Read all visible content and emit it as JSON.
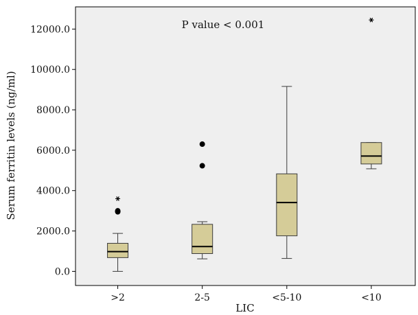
{
  "chart_data": {
    "type": "boxplot",
    "annotation": "P value < 0.001",
    "xlabel": "LIC",
    "ylabel": "Serum ferritin levels (ng/ml)",
    "ylim": [
      -700,
      13100
    ],
    "y_ticks": [
      0,
      2000,
      4000,
      6000,
      8000,
      10000,
      12000
    ],
    "y_tick_labels": [
      "0.0",
      "2000.0",
      "4000.0",
      "6000.0",
      "8000.0",
      "10000.0",
      "12000.0"
    ],
    "categories": [
      ">2",
      "2-5",
      "<5-10",
      "<10"
    ],
    "grid": false,
    "colors": {
      "plot_background": "#efefef",
      "box_fill": "#d5cc98",
      "box_stroke": "#3a3a3a",
      "median": "#000000",
      "axis": "#000000"
    },
    "boxes": [
      {
        "category": ">2",
        "whisker_low": 0,
        "q1": 680,
        "median": 980,
        "q3": 1390,
        "whisker_high": 1880,
        "outliers": [
          2950,
          3000
        ],
        "extremes": [
          3600
        ]
      },
      {
        "category": "2-5",
        "whisker_low": 620,
        "q1": 880,
        "median": 1230,
        "q3": 2330,
        "whisker_high": 2460,
        "outliers": [
          5230,
          6300
        ],
        "extremes": []
      },
      {
        "category": "<5-10",
        "whisker_low": 640,
        "q1": 1760,
        "median": 3410,
        "q3": 4830,
        "whisker_high": 9160,
        "outliers": [],
        "extremes": []
      },
      {
        "category": "<10",
        "whisker_low": 5080,
        "q1": 5320,
        "median": 5710,
        "q3": 6380,
        "whisker_high": 6380,
        "outliers": [],
        "extremes": [
          12450
        ]
      }
    ]
  }
}
